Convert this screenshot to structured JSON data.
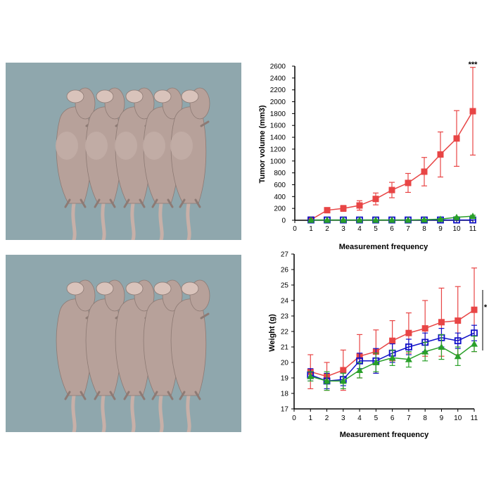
{
  "colors": {
    "background": "#ffffff",
    "photo_bg": "#8fa7ad",
    "mouse_skin": "#b7a19a",
    "tail": "#c7b0a8",
    "red": "#e84545",
    "green": "#2aa02a",
    "blue": "#1010c8",
    "axis": "#000000"
  },
  "chart_data": [
    {
      "id": "tumor",
      "type": "line",
      "xlabel": "Measurement  frequency",
      "ylabel": "Tumor volume (mm3)",
      "x": [
        1,
        2,
        3,
        4,
        5,
        6,
        7,
        8,
        9,
        10,
        11
      ],
      "xlim": [
        0,
        11
      ],
      "ylim": [
        0,
        2600
      ],
      "xticks": [
        "0",
        "1",
        "2",
        "3",
        "4",
        "5",
        "6",
        "7",
        "8",
        "9",
        "10",
        "11"
      ],
      "yticks": [
        "0",
        "200",
        "400",
        "600",
        "800",
        "1000",
        "1200",
        "1400",
        "1600",
        "1800",
        "2000",
        "2200",
        "2400",
        "2600"
      ],
      "annotation": "***",
      "series": [
        {
          "name": "red",
          "marker": "square",
          "color": "#e84545",
          "values": [
            10,
            170,
            200,
            250,
            360,
            510,
            630,
            820,
            1110,
            1380,
            1840
          ],
          "err": [
            5,
            30,
            50,
            80,
            100,
            130,
            160,
            240,
            380,
            470,
            740
          ]
        },
        {
          "name": "blue",
          "marker": "open-square",
          "color": "#1010c8",
          "values": [
            5,
            5,
            5,
            5,
            5,
            5,
            5,
            5,
            5,
            5,
            5
          ],
          "err": [
            2,
            2,
            2,
            2,
            2,
            2,
            2,
            2,
            2,
            2,
            2
          ]
        },
        {
          "name": "green",
          "marker": "triangle",
          "color": "#2aa02a",
          "values": [
            5,
            5,
            5,
            5,
            5,
            5,
            5,
            10,
            20,
            50,
            70
          ],
          "err": [
            2,
            2,
            2,
            2,
            2,
            2,
            2,
            5,
            8,
            10,
            15
          ]
        }
      ]
    },
    {
      "id": "weight",
      "type": "line",
      "xlabel": "Measurement  frequency",
      "ylabel": "Weight (g)",
      "x": [
        1,
        2,
        3,
        4,
        5,
        6,
        7,
        8,
        9,
        10,
        11
      ],
      "xlim": [
        0,
        11
      ],
      "ylim": [
        17,
        27
      ],
      "xticks": [
        "0",
        "1",
        "2",
        "3",
        "4",
        "5",
        "6",
        "7",
        "8",
        "9",
        "10",
        "11"
      ],
      "yticks": [
        "17",
        "18",
        "19",
        "20",
        "21",
        "22",
        "23",
        "24",
        "25",
        "26",
        "27"
      ],
      "annotation": "*",
      "series": [
        {
          "name": "red",
          "marker": "square",
          "color": "#e84545",
          "values": [
            19.4,
            19.1,
            19.5,
            20.4,
            20.7,
            21.4,
            21.9,
            22.2,
            22.6,
            22.7,
            23.4
          ],
          "err": [
            1.1,
            0.9,
            1.3,
            1.4,
            1.4,
            1.3,
            1.3,
            1.8,
            2.2,
            2.2,
            2.7
          ]
        },
        {
          "name": "blue",
          "marker": "open-square",
          "color": "#1010c8",
          "values": [
            19.2,
            18.8,
            18.9,
            20.1,
            20.1,
            20.6,
            21.0,
            21.3,
            21.6,
            21.4,
            21.9
          ],
          "err": [
            0.4,
            0.5,
            0.4,
            0.5,
            0.8,
            0.6,
            0.5,
            0.6,
            0.6,
            0.5,
            0.5
          ]
        },
        {
          "name": "green",
          "marker": "triangle",
          "color": "#2aa02a",
          "values": [
            19.1,
            18.8,
            18.8,
            19.5,
            20.0,
            20.3,
            20.2,
            20.7,
            21.0,
            20.4,
            21.2
          ],
          "err": [
            0.3,
            0.6,
            0.5,
            0.5,
            0.6,
            0.5,
            0.5,
            0.6,
            0.8,
            0.6,
            0.5
          ]
        }
      ]
    }
  ]
}
